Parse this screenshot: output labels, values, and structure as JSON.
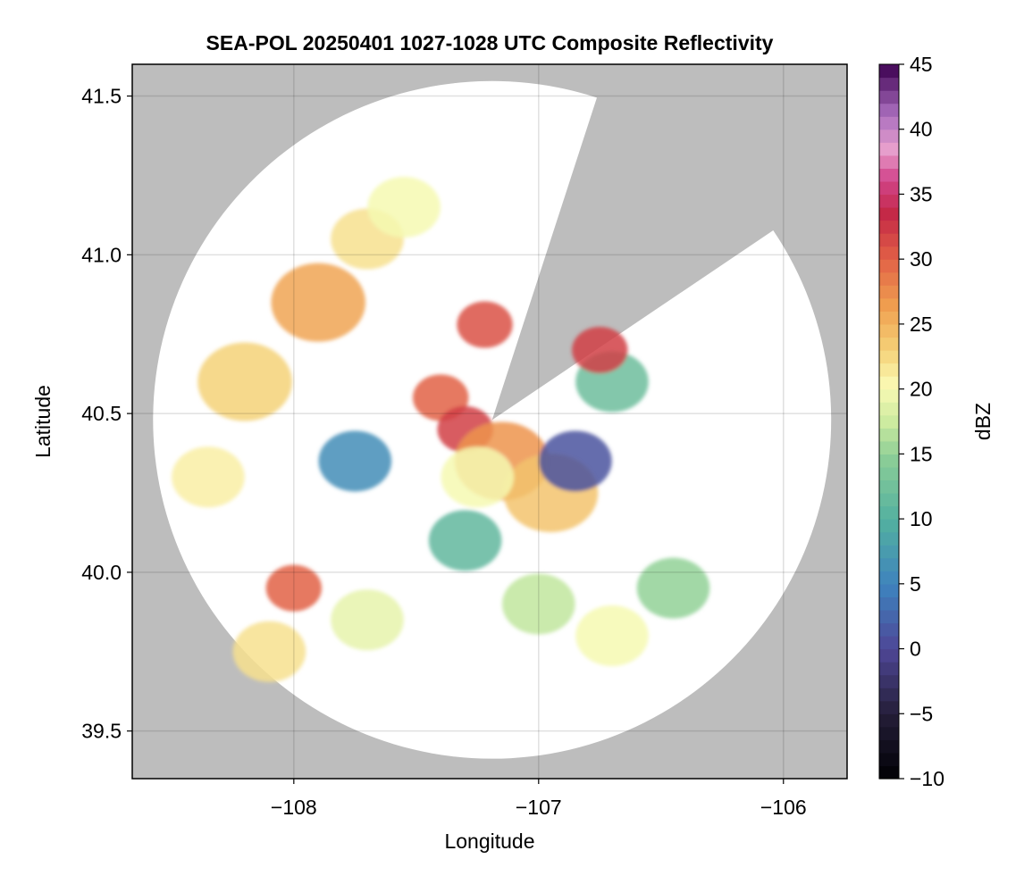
{
  "chart_data": {
    "type": "heatmap",
    "title": "SEA-POL 20250401 1027-1028 UTC Composite Reflectivity",
    "xlabel": "Longitude",
    "ylabel": "Latitude",
    "xlim": [
      -108.66,
      -105.74
    ],
    "ylim": [
      39.35,
      41.6
    ],
    "xticks": [
      -108,
      -107,
      -106
    ],
    "xtick_labels": [
      "−108",
      "−107",
      "−106"
    ],
    "yticks": [
      39.5,
      40.0,
      40.5,
      41.0,
      41.5
    ],
    "ytick_labels": [
      "39.5",
      "40.0",
      "40.5",
      "41.0",
      "41.5"
    ],
    "grid": true,
    "background_color": "#bdbdbd",
    "radar_site": {
      "lon": -107.19,
      "lat": 40.48
    },
    "coverage_radius_deg": 1.385,
    "blanked_sectors_deg_clockwise_from_north": [
      [
        18,
        56
      ]
    ],
    "colorbar": {
      "label": "dBZ",
      "min": -10,
      "max": 45,
      "ticks": [
        -10,
        -5,
        0,
        5,
        10,
        15,
        20,
        25,
        30,
        35,
        40,
        45
      ],
      "tick_labels": [
        "−10",
        "−5",
        "0",
        "5",
        "10",
        "15",
        "20",
        "25",
        "30",
        "35",
        "40",
        "45"
      ],
      "colormap": "spectral-reversed"
    },
    "echo_regions": [
      {
        "lon": -107.9,
        "lat": 40.85,
        "dbz": 26
      },
      {
        "lon": -107.7,
        "lat": 41.05,
        "dbz": 22
      },
      {
        "lon": -107.55,
        "lat": 41.15,
        "dbz": 20
      },
      {
        "lon": -107.4,
        "lat": 40.55,
        "dbz": 30
      },
      {
        "lon": -107.3,
        "lat": 40.45,
        "dbz": 32
      },
      {
        "lon": -107.15,
        "lat": 40.35,
        "dbz": 27
      },
      {
        "lon": -106.95,
        "lat": 40.25,
        "dbz": 24
      },
      {
        "lon": -108.2,
        "lat": 40.6,
        "dbz": 23
      },
      {
        "lon": -108.35,
        "lat": 40.3,
        "dbz": 21
      },
      {
        "lon": -108.0,
        "lat": 39.95,
        "dbz": 30
      },
      {
        "lon": -108.1,
        "lat": 39.75,
        "dbz": 22
      },
      {
        "lon": -107.3,
        "lat": 40.1,
        "dbz": 11
      },
      {
        "lon": -107.75,
        "lat": 40.35,
        "dbz": 6
      },
      {
        "lon": -106.7,
        "lat": 40.6,
        "dbz": 12
      },
      {
        "lon": -106.75,
        "lat": 40.7,
        "dbz": 32
      },
      {
        "lon": -106.85,
        "lat": 40.35,
        "dbz": 1
      },
      {
        "lon": -107.25,
        "lat": 40.3,
        "dbz": 20
      },
      {
        "lon": -107.22,
        "lat": 40.78,
        "dbz": 31
      },
      {
        "lon": -107.0,
        "lat": 39.9,
        "dbz": 17
      },
      {
        "lon": -106.7,
        "lat": 39.8,
        "dbz": 20
      },
      {
        "lon": -107.7,
        "lat": 39.85,
        "dbz": 19
      },
      {
        "lon": -106.45,
        "lat": 39.95,
        "dbz": 15
      }
    ]
  }
}
